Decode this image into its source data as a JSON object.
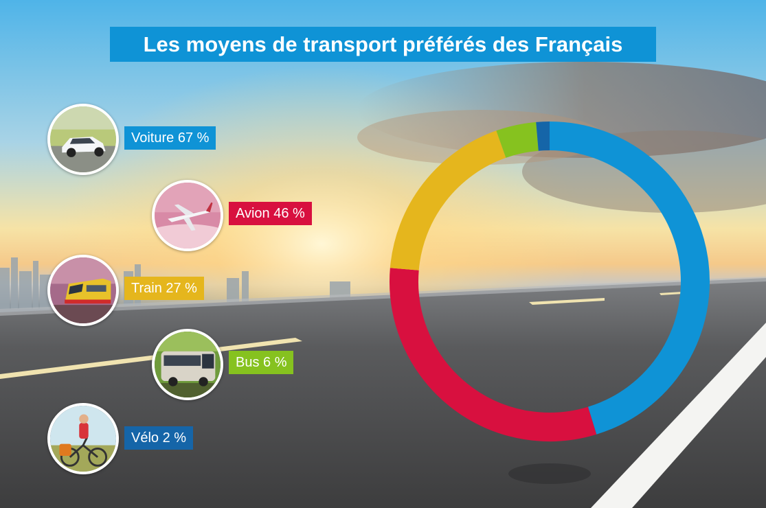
{
  "title": "Les moyens de transport préférés des Français",
  "chart_data": {
    "type": "pie",
    "categories": [
      "Voiture",
      "Avion",
      "Train",
      "Bus",
      "Vélo"
    ],
    "values": [
      67,
      46,
      27,
      6,
      2
    ],
    "labels": [
      "Voiture 67 %",
      "Avion 46 %",
      "Train 27 %",
      "Bus 6 %",
      "Vélo 2 %"
    ],
    "colors": [
      "#0f93d6",
      "#d8103f",
      "#e5b61d",
      "#86c21f",
      "#1565a8"
    ],
    "title": "Les moyens de transport préférés des Français",
    "style": "donut"
  },
  "icons": [
    "car-photo",
    "airplane-photo",
    "train-photo",
    "bus-photo",
    "cyclist-photo"
  ]
}
